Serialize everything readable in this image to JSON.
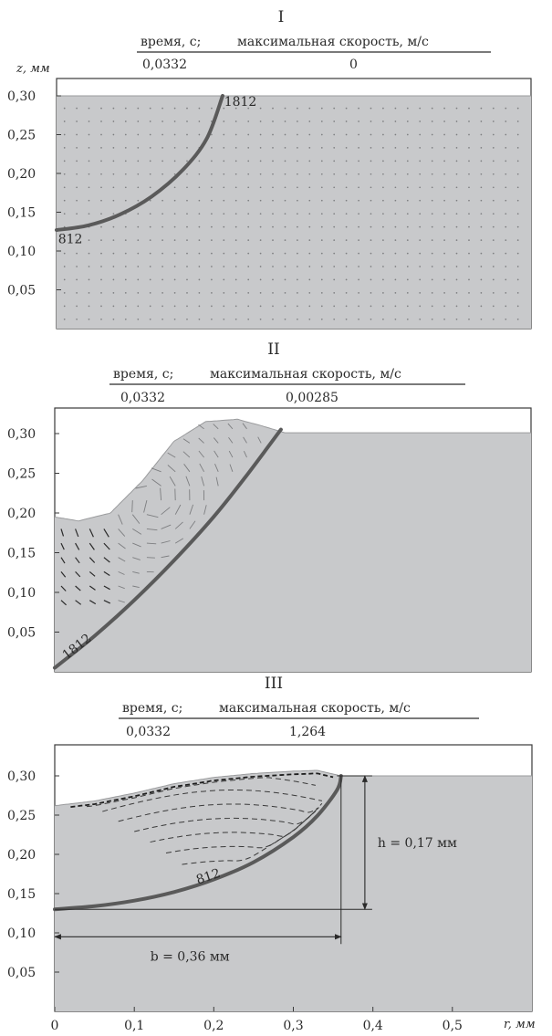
{
  "chart_data": [
    {
      "type": "area",
      "panel_label": "I",
      "header": {
        "time_label": "время, с;",
        "speed_label": "максимальная скорость, м/с",
        "time_value": "0,0332",
        "speed_value": "0"
      },
      "ylabel": "z, мм",
      "xlabel": "",
      "ylim": [
        0,
        0.3
      ],
      "xlim": [
        0,
        0.6
      ],
      "yticks": [
        "0,05",
        "0,10",
        "0,15",
        "0,20",
        "0,25",
        "0,30"
      ],
      "ytick_values": [
        0.05,
        0.1,
        0.15,
        0.2,
        0.25,
        0.3
      ],
      "surface": {
        "x": [
          0,
          0.6
        ],
        "z": [
          0.3,
          0.3
        ]
      },
      "isotherms": [
        {
          "name": "1812",
          "x": [
            0,
            0.04,
            0.08,
            0.12,
            0.16,
            0.19,
            0.21
          ],
          "z": [
            0.127,
            0.133,
            0.147,
            0.17,
            0.205,
            0.245,
            0.3
          ]
        }
      ],
      "annotations": [
        {
          "text": "1812",
          "x": 0.212,
          "z": 0.287
        },
        {
          "text": "812",
          "x": 0.002,
          "z": 0.11
        }
      ],
      "colors": {
        "region": "#c8c9cb",
        "isotherm": "#5a5a5a",
        "vector": "#7d7e80"
      }
    },
    {
      "type": "area",
      "panel_label": "II",
      "header": {
        "time_label": "время, с;",
        "speed_label": "максимальная скорость, м/с",
        "time_value": "0,0332",
        "speed_value": "0,00285"
      },
      "ylabel": "",
      "xlabel": "",
      "ylim": [
        0,
        0.33
      ],
      "xlim": [
        0,
        0.6
      ],
      "yticks": [
        "0,05",
        "0,10",
        "0,15",
        "0,20",
        "0,25",
        "0,30"
      ],
      "ytick_values": [
        0.05,
        0.1,
        0.15,
        0.2,
        0.25,
        0.3
      ],
      "surface": {
        "x": [
          0,
          0.03,
          0.07,
          0.11,
          0.15,
          0.19,
          0.23,
          0.26,
          0.29,
          0.6
        ],
        "z": [
          0.195,
          0.19,
          0.2,
          0.24,
          0.29,
          0.315,
          0.318,
          0.31,
          0.301,
          0.301
        ]
      },
      "isotherms": [
        {
          "name": "1812",
          "x": [
            0,
            0.05,
            0.1,
            0.15,
            0.2,
            0.24,
            0.27,
            0.285
          ],
          "z": [
            0.005,
            0.045,
            0.09,
            0.14,
            0.195,
            0.245,
            0.285,
            0.305
          ]
        }
      ],
      "annotations": [
        {
          "text": "1812",
          "x": 0.015,
          "z": 0.015
        }
      ],
      "colors": {
        "region": "#c8c9cb",
        "isotherm": "#5a5a5a",
        "vector": "#7d7e80"
      }
    },
    {
      "type": "area",
      "panel_label": "III",
      "header": {
        "time_label": "время, с;",
        "speed_label": "максимальная скорость, м/с",
        "time_value": "0,0332",
        "speed_value": "1,264"
      },
      "ylabel": "",
      "xlabel": "r, мм",
      "ylim": [
        0,
        0.32
      ],
      "xlim": [
        0,
        0.6
      ],
      "yticks": [
        "0,05",
        "0,10",
        "0,15",
        "0,20",
        "0,25",
        "0,30"
      ],
      "ytick_values": [
        0.05,
        0.1,
        0.15,
        0.2,
        0.25,
        0.3
      ],
      "xticks": [
        "0",
        "0,1",
        "0,2",
        "0,3",
        "0,4",
        "0,5"
      ],
      "xtick_values": [
        0,
        0.1,
        0.2,
        0.3,
        0.4,
        0.5
      ],
      "surface": {
        "x": [
          0,
          0.05,
          0.1,
          0.15,
          0.2,
          0.25,
          0.3,
          0.33,
          0.36,
          0.6
        ],
        "z": [
          0.262,
          0.268,
          0.278,
          0.29,
          0.298,
          0.303,
          0.306,
          0.307,
          0.3,
          0.3
        ]
      },
      "isotherms": [
        {
          "name": "812",
          "x": [
            0,
            0.05,
            0.1,
            0.15,
            0.2,
            0.25,
            0.3,
            0.33,
            0.355,
            0.36
          ],
          "z": [
            0.13,
            0.134,
            0.141,
            0.152,
            0.168,
            0.19,
            0.222,
            0.249,
            0.282,
            0.3
          ]
        }
      ],
      "annotations": [
        {
          "text": "812",
          "x": 0.18,
          "z": 0.162
        }
      ],
      "dimensions": {
        "h": {
          "label": "h = 0,17 мм",
          "value_mm": 0.17,
          "z_from": 0.13,
          "z_to": 0.3,
          "x_at": 0.39
        },
        "b": {
          "label": "b = 0,36 мм",
          "value_mm": 0.36,
          "x_from": 0,
          "x_to": 0.36,
          "z_at": 0.095
        }
      },
      "colors": {
        "region": "#c8c9cb",
        "isotherm": "#5a5a5a",
        "vector": "#3a3a3a"
      }
    }
  ]
}
